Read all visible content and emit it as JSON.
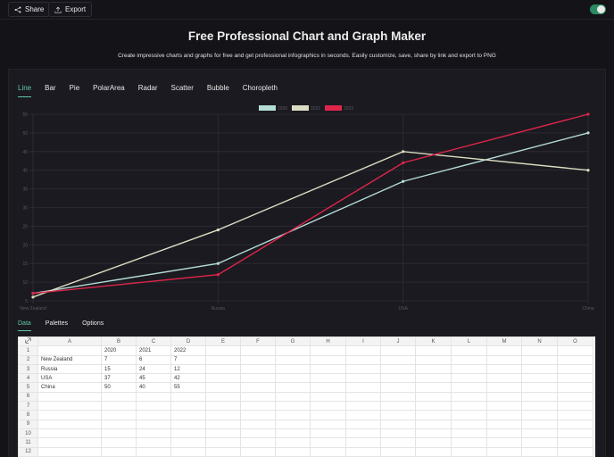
{
  "toolbar": {
    "share_label": "Share",
    "export_label": "Export",
    "theme_toggle": "on"
  },
  "hero": {
    "title": "Free Professional Chart and Graph Maker",
    "subtitle": "Create impressive charts and graphs for free and get professional infographics in seconds. Easily customize, save, share by link and export to PNG"
  },
  "chart_tabs": [
    {
      "label": "Line",
      "active": true
    },
    {
      "label": "Bar"
    },
    {
      "label": "Pie"
    },
    {
      "label": "PolarArea"
    },
    {
      "label": "Radar"
    },
    {
      "label": "Scatter"
    },
    {
      "label": "Bubble"
    },
    {
      "label": "Choropleth"
    }
  ],
  "colors": {
    "accent": "#5fc8a3",
    "series_2020": "#b4dcd6",
    "series_2021": "#dcdcc2",
    "series_2022": "#e0254b"
  },
  "chart_data": {
    "type": "line",
    "title": "",
    "xlabel": "",
    "ylabel": "",
    "categories": [
      "New Zealand",
      "Russia",
      "USA",
      "China"
    ],
    "series": [
      {
        "name": "2020",
        "values": [
          7,
          15,
          37,
          50
        ],
        "color": "#b4dcd6"
      },
      {
        "name": "2021",
        "values": [
          6,
          24,
          45,
          40
        ],
        "color": "#dcdcc2"
      },
      {
        "name": "2022",
        "values": [
          7,
          12,
          42,
          55
        ],
        "color": "#e0254b"
      }
    ],
    "yticks": [
      5,
      10,
      15,
      20,
      25,
      30,
      35,
      40,
      45,
      50,
      55
    ],
    "ylim": [
      5,
      55
    ],
    "legend_position": "top",
    "grid": true
  },
  "data_tabs": [
    {
      "label": "Data",
      "active": true
    },
    {
      "label": "Palettes"
    },
    {
      "label": "Options"
    }
  ],
  "sheet": {
    "columns": [
      "A",
      "B",
      "C",
      "D",
      "E",
      "F",
      "G",
      "H",
      "I",
      "J",
      "K",
      "L",
      "M",
      "N",
      "O"
    ],
    "rows": [
      [
        "",
        "2020",
        "2021",
        "2022"
      ],
      [
        "New Zealand",
        "7",
        "6",
        "7"
      ],
      [
        "Russia",
        "15",
        "24",
        "12"
      ],
      [
        "USA",
        "37",
        "45",
        "42"
      ],
      [
        "China",
        "50",
        "40",
        "55"
      ],
      [],
      [],
      [],
      [],
      [],
      [],
      []
    ]
  }
}
